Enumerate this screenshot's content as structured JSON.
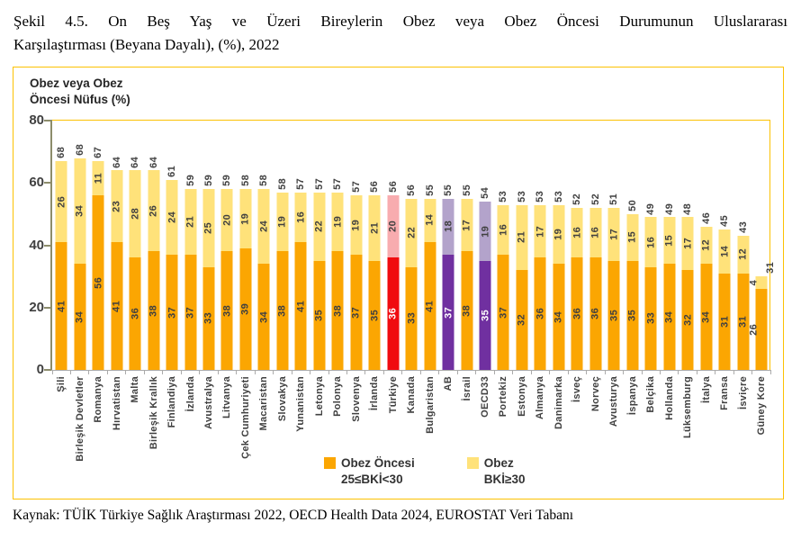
{
  "figure": {
    "title_line1": "Şekil 4.5. On Beş Yaş ve Üzeri Bireylerin Obez veya Obez Öncesi Durumunun Uluslararası",
    "title_line2": "Karşılaştırması (Beyana Dayalı), (%), 2022",
    "source": "Kaynak: TÜİK Türkiye Sağlık Araştırması 2022, OECD Health Data 2024, EUROSTAT Veri Tabanı"
  },
  "chart_data": {
    "type": "bar",
    "stacked": true,
    "title": "Obez veya Obez Öncesi Nüfus (%)",
    "axis_label_line1": "Obez veya Obez",
    "axis_label_line2": "Öncesi Nüfus (%)",
    "ylim": [
      0,
      80
    ],
    "yticks": [
      0,
      20,
      40,
      60,
      80
    ],
    "grid": false,
    "legend_position": "bottom",
    "categories": [
      "Şili",
      "Birleşik Devletler",
      "Romanya",
      "Hırvatistan",
      "Malta",
      "Birleşik Krallık",
      "Finlandiya",
      "İzlanda",
      "Avustralya",
      "Litvanya",
      "Çek Cumhuriyeti",
      "Macaristan",
      "Slovakya",
      "Yunanistan",
      "Letonya",
      "Polonya",
      "Slovenya",
      "İrlanda",
      "Türkiye",
      "Kanada",
      "Bulgaristan",
      "AB",
      "İsrail",
      "OECD33",
      "Portekiz",
      "Estonya",
      "Almanya",
      "Danimarka",
      "İsveç",
      "Norveç",
      "Avusturya",
      "İspanya",
      "Belçika",
      "Hollanda",
      "Lüksemburg",
      "İtalya",
      "Fransa",
      "İsviçre",
      "Güney Kore"
    ],
    "series": [
      {
        "name": "Obez Öncesi 25≤BKİ<30",
        "values": [
          41,
          34,
          56,
          41,
          36,
          38,
          37,
          37,
          33,
          38,
          39,
          34,
          38,
          41,
          35,
          38,
          37,
          35,
          36,
          33,
          41,
          37,
          38,
          35,
          37,
          32,
          36,
          34,
          36,
          36,
          35,
          35,
          33,
          34,
          32,
          34,
          31,
          31,
          26
        ]
      },
      {
        "name": "Obez BKİ≥30",
        "values": [
          26,
          34,
          11,
          23,
          28,
          26,
          24,
          21,
          25,
          20,
          19,
          24,
          19,
          16,
          22,
          19,
          19,
          21,
          20,
          22,
          14,
          18,
          17,
          19,
          16,
          21,
          17,
          19,
          16,
          16,
          17,
          15,
          16,
          15,
          17,
          12,
          14,
          12,
          4
        ]
      }
    ],
    "totals": [
      68,
      68,
      67,
      64,
      64,
      64,
      61,
      59,
      59,
      59,
      58,
      58,
      58,
      57,
      57,
      57,
      57,
      56,
      56,
      56,
      55,
      55,
      55,
      54,
      53,
      53,
      53,
      53,
      52,
      52,
      51,
      50,
      49,
      49,
      48,
      46,
      45,
      43,
      31
    ],
    "bar_styles": {
      "Türkiye": "red",
      "AB": "purple",
      "OECD33": "purple"
    },
    "legend": [
      {
        "label": "Obez Öncesi",
        "sublabel": "25≤BKİ<30",
        "swatch": "#FBA602"
      },
      {
        "label": "Obez",
        "sublabel": "BKİ≥30",
        "swatch": "#FFE27A"
      }
    ],
    "colors": {
      "default": {
        "bottom": "#FBA602",
        "top": "#FFE27A",
        "bottom_text": "#404040",
        "top_text": "#404040"
      },
      "red": {
        "bottom": "#F00B0F",
        "top": "#F8ACAF",
        "bottom_text": "#FFFFFF",
        "top_text": "#404040"
      },
      "purple": {
        "bottom": "#7030A0",
        "top": "#B3A3CB",
        "bottom_text": "#FFFFFF",
        "top_text": "#404040"
      },
      "frame": "#FCC103",
      "axis": "#8C8C6B",
      "baseline": "#ABABAB",
      "text": "#404040"
    }
  }
}
